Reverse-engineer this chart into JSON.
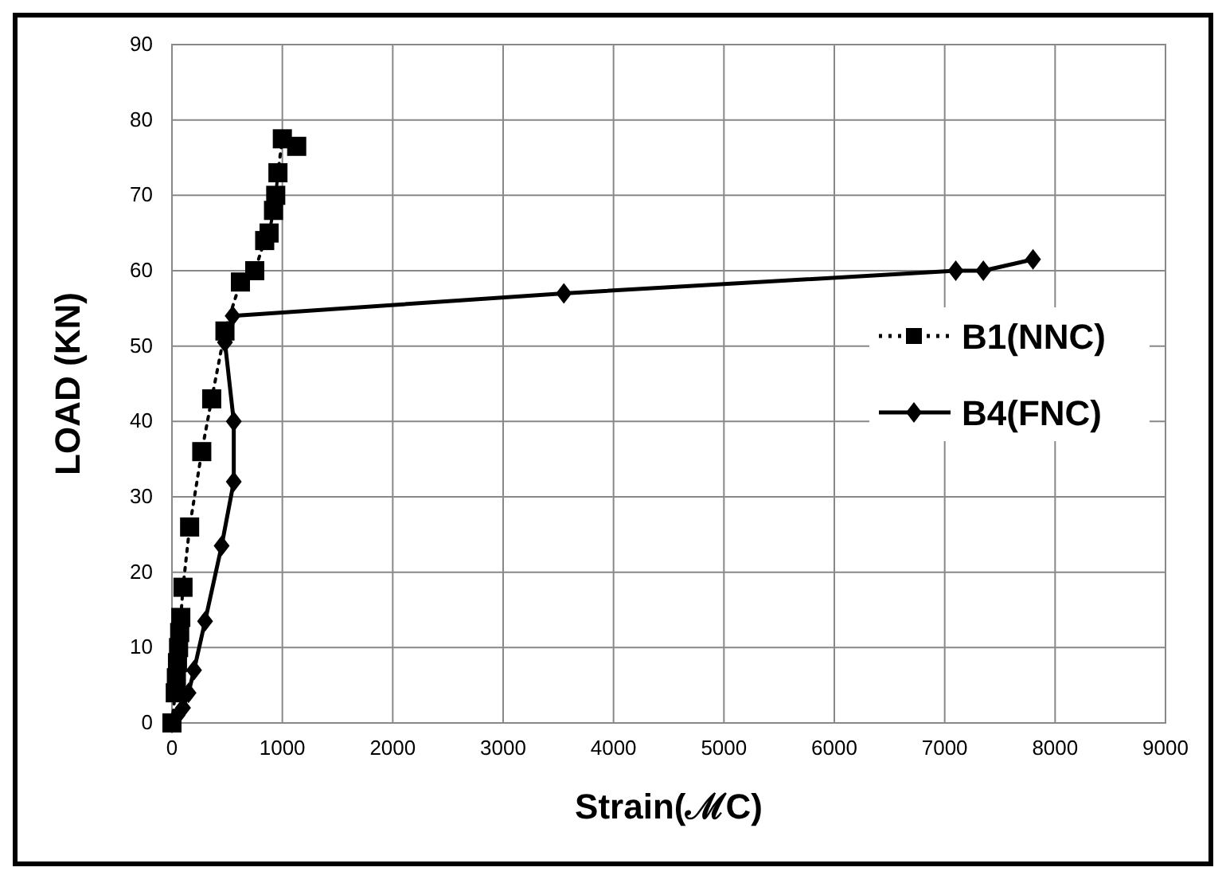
{
  "chart_data": {
    "type": "line",
    "xlabel": "Strain(ℳC)",
    "ylabel": "LOAD (KN)",
    "xlim": [
      0,
      9000
    ],
    "xticks": [
      0,
      1000,
      2000,
      3000,
      4000,
      5000,
      6000,
      7000,
      8000,
      9000
    ],
    "ylim": [
      0,
      90
    ],
    "yticks": [
      0,
      10,
      20,
      30,
      40,
      50,
      60,
      70,
      80,
      90
    ],
    "grid": true,
    "legend": "right",
    "series": [
      {
        "name": "B1(NNC)",
        "color": "#000000",
        "marker": "square",
        "line_style": "dotted",
        "x": [
          0,
          30,
          40,
          50,
          60,
          70,
          80,
          100,
          160,
          270,
          360,
          480,
          620,
          750,
          840,
          880,
          920,
          940,
          960,
          1000,
          1130
        ],
        "values": [
          0,
          4,
          6,
          8,
          10,
          12,
          14,
          18,
          26,
          36,
          43,
          52,
          58.5,
          60,
          64,
          65,
          68,
          70,
          73,
          77.5,
          76.5
        ]
      },
      {
        "name": "B4(FNC)",
        "color": "#000000",
        "marker": "diamond",
        "line_style": "solid",
        "x": [
          0,
          50,
          100,
          150,
          200,
          300,
          450,
          560,
          560,
          480,
          550,
          3550,
          7100,
          7350,
          7800
        ],
        "values": [
          0,
          1,
          2,
          4,
          7,
          13.5,
          23.5,
          32,
          40,
          50.5,
          54,
          57,
          60,
          60,
          61.5
        ]
      }
    ]
  }
}
